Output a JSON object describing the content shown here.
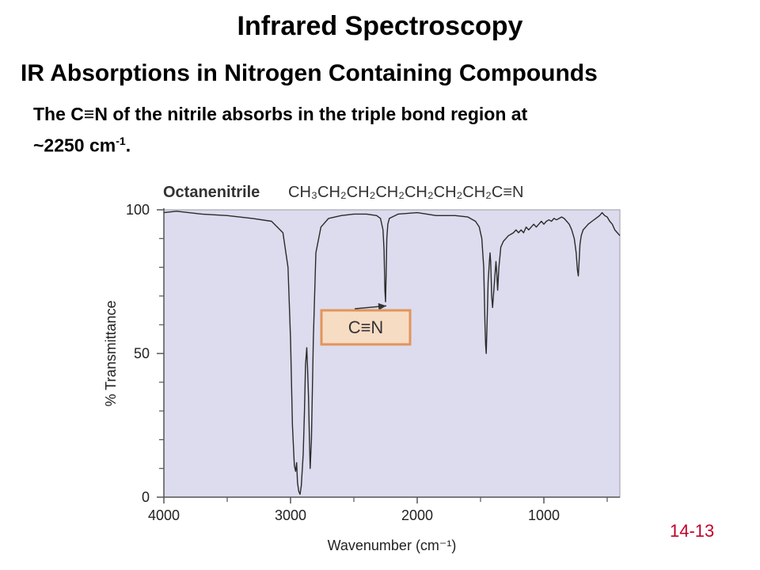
{
  "slide": {
    "title": "Infrared Spectroscopy",
    "subtitle": "IR Absorptions in Nitrogen Containing Compounds",
    "desc_part1": "The C",
    "desc_bond": "≡",
    "desc_part2": "N of the nitrile absorbs in the triple bond region at",
    "desc_line2": "~2250 cm",
    "desc_sup": "-1",
    "desc_end": ".",
    "slide_number": "14-13"
  },
  "chart_data": {
    "type": "line",
    "compound_name": "Octanenitrile",
    "compound_formula": "CH₃CH₂CH₂CH₂CH₂CH₂CH₂C≡N",
    "xlabel": "Wavenumber (cm⁻¹)",
    "ylabel": "% Transmittance",
    "xlim": [
      4000,
      400
    ],
    "ylim": [
      0,
      100
    ],
    "x_ticks": [
      4000,
      3000,
      2000,
      1000
    ],
    "x_minor_ticks": [
      3500,
      2500,
      1500,
      500
    ],
    "y_ticks": [
      0,
      50,
      100
    ],
    "y_minor_ticks": [
      10,
      20,
      30,
      40,
      60,
      70,
      80,
      90
    ],
    "grid": false,
    "plot_background": "#dcdcee",
    "line_color": "#2a2a2a",
    "annotation": {
      "label": "C≡N",
      "wavenumber": 2250,
      "box_fill": "#f7dcc4",
      "box_border": "#e2955a"
    },
    "series": [
      {
        "x": [
          4000,
          3900,
          3700,
          3500,
          3300,
          3150,
          3060,
          3020,
          3000,
          2985,
          2970,
          2960,
          2952,
          2945,
          2935,
          2925,
          2915,
          2900,
          2890,
          2882,
          2872,
          2865,
          2858,
          2852,
          2845,
          2835,
          2820,
          2800,
          2760,
          2700,
          2600,
          2500,
          2400,
          2320,
          2290,
          2270,
          2262,
          2255,
          2250,
          2245,
          2240,
          2232,
          2220,
          2150,
          2000,
          1850,
          1700,
          1600,
          1540,
          1510,
          1490,
          1475,
          1465,
          1460,
          1455,
          1450,
          1440,
          1430,
          1425,
          1420,
          1412,
          1405,
          1395,
          1385,
          1378,
          1372,
          1365,
          1355,
          1340,
          1320,
          1300,
          1280,
          1260,
          1240,
          1220,
          1200,
          1180,
          1160,
          1140,
          1120,
          1100,
          1080,
          1060,
          1040,
          1020,
          1000,
          980,
          960,
          940,
          920,
          900,
          880,
          860,
          840,
          820,
          800,
          780,
          760,
          745,
          735,
          728,
          722,
          715,
          705,
          690,
          670,
          650,
          620,
          590,
          560,
          540,
          520,
          500,
          480,
          460,
          440,
          420,
          400
        ],
        "y": [
          99,
          99.5,
          98.5,
          98,
          97,
          96,
          92,
          80,
          55,
          25,
          11,
          9,
          12,
          5,
          2,
          1,
          4,
          15,
          30,
          46,
          52,
          44,
          35,
          22,
          10,
          20,
          55,
          85,
          94,
          97,
          98,
          98.5,
          98.5,
          98,
          97,
          93,
          86,
          72,
          68,
          78,
          90,
          95,
          97,
          98.5,
          99,
          98,
          98,
          97.5,
          96,
          94,
          90,
          80,
          60,
          53,
          50,
          58,
          75,
          82,
          85,
          82,
          70,
          66,
          72,
          78,
          82,
          78,
          72,
          80,
          87,
          89,
          90,
          91,
          91.5,
          92,
          93,
          92,
          93,
          92,
          94,
          93,
          94,
          95,
          94,
          95,
          96,
          95,
          96,
          96.5,
          96,
          97,
          96.5,
          97,
          97.5,
          97,
          96,
          95,
          93,
          90,
          85,
          79,
          77,
          82,
          88,
          91,
          93,
          94,
          95,
          96,
          97,
          98,
          99,
          98,
          97.5,
          96,
          95,
          93,
          92,
          91
        ]
      }
    ]
  }
}
